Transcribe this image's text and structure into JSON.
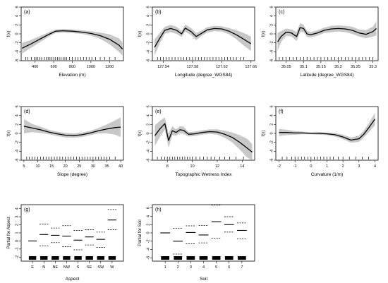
{
  "chart_data": [
    {
      "type": "line",
      "panel_label": "(a)",
      "xlabel": "Elevation (m)",
      "ylabel": "f(x)",
      "xlim": [
        250,
        1350
      ],
      "ylim": [
        -6,
        6
      ],
      "xticks": [
        400,
        600,
        800,
        1000,
        1200
      ],
      "yticks": [
        -6,
        -4,
        -2,
        0,
        2,
        4,
        6
      ],
      "series": [
        {
          "x": [
            260,
            350,
            450,
            550,
            620,
            700,
            800,
            900,
            1000,
            1100,
            1200,
            1300,
            1340
          ],
          "values": [
            -3.2,
            -2.3,
            -1.2,
            -0.1,
            0.6,
            0.7,
            0.6,
            0.4,
            0.1,
            -0.4,
            -1.2,
            -2.5,
            -3.4
          ],
          "lower": [
            -4.4,
            -3.2,
            -1.9,
            -0.6,
            0.2,
            0.3,
            0.2,
            0.0,
            -0.4,
            -1.1,
            -2.3,
            -4.0,
            -4.9
          ],
          "upper": [
            -2.0,
            -1.4,
            -0.5,
            0.4,
            1.0,
            1.1,
            1.0,
            0.8,
            0.6,
            0.3,
            -0.1,
            -1.0,
            -1.9
          ]
        }
      ],
      "rug": [
        300,
        320,
        360,
        390,
        410,
        430,
        450,
        470,
        500,
        520,
        540,
        560,
        580,
        600,
        620,
        640,
        660,
        680,
        700,
        720,
        740,
        770,
        800,
        830,
        860,
        890,
        920,
        950,
        980,
        1010,
        1050,
        1100,
        1150,
        1200,
        1260
      ]
    },
    {
      "type": "line",
      "panel_label": "(b)",
      "xlabel": "Longitude (degree_WGS84)",
      "ylabel": "f(x)",
      "xlim": [
        127.525,
        127.665
      ],
      "ylim": [
        -6,
        6
      ],
      "xticks": [
        127.54,
        127.58,
        127.62,
        127.66
      ],
      "yticks": [
        -6,
        -4,
        -2,
        0,
        2,
        4,
        6
      ],
      "series": [
        {
          "x": [
            127.528,
            127.535,
            127.542,
            127.55,
            127.558,
            127.565,
            127.57,
            127.578,
            127.585,
            127.592,
            127.6,
            127.61,
            127.62,
            127.63,
            127.64,
            127.65,
            127.66
          ],
          "values": [
            -3.0,
            -1.0,
            0.8,
            1.2,
            0.8,
            0.0,
            1.3,
            0.5,
            -0.6,
            0.1,
            0.9,
            1.2,
            1.1,
            0.6,
            -0.2,
            -1.2,
            -2.2
          ],
          "lower": [
            -4.8,
            -2.2,
            0.0,
            0.4,
            0.0,
            -0.7,
            0.5,
            -0.3,
            -1.4,
            -0.5,
            0.3,
            0.6,
            0.5,
            -0.1,
            -1.2,
            -2.6,
            -3.8
          ],
          "upper": [
            -1.2,
            0.2,
            1.6,
            2.0,
            1.6,
            0.7,
            2.1,
            1.3,
            0.2,
            0.7,
            1.5,
            1.8,
            1.7,
            1.3,
            0.8,
            0.2,
            -0.6
          ]
        }
      ],
      "rug": [
        127.532,
        127.536,
        127.54,
        127.544,
        127.548,
        127.552,
        127.556,
        127.56,
        127.564,
        127.568,
        127.572,
        127.576,
        127.58,
        127.584,
        127.588,
        127.592,
        127.596,
        127.6,
        127.604,
        127.608,
        127.612,
        127.616,
        127.62,
        127.624,
        127.628,
        127.632,
        127.636,
        127.64,
        127.645,
        127.65
      ]
    },
    {
      "type": "line",
      "panel_label": "(c)",
      "xlabel": "Latitude (degree_WGS84)",
      "ylabel": "f(x)",
      "xlim": [
        35.02,
        35.315
      ],
      "ylim": [
        -6,
        6
      ],
      "xticks": [
        35.05,
        35.1,
        35.15,
        35.2,
        35.25,
        35.3
      ],
      "yticks": [
        -6,
        -4,
        -2,
        0,
        2,
        4,
        6
      ],
      "series": [
        {
          "x": [
            35.025,
            35.035,
            35.05,
            35.065,
            35.08,
            35.09,
            35.1,
            35.11,
            35.12,
            35.14,
            35.16,
            35.18,
            35.2,
            35.22,
            35.24,
            35.26,
            35.28,
            35.3,
            35.31
          ],
          "values": [
            -1.8,
            -0.6,
            0.4,
            0.2,
            -0.6,
            1.4,
            1.2,
            0.0,
            -0.2,
            0.2,
            0.8,
            1.1,
            1.2,
            1.1,
            0.8,
            0.2,
            -0.1,
            0.5,
            1.2
          ],
          "lower": [
            -3.8,
            -1.8,
            -0.4,
            -0.6,
            -1.6,
            0.4,
            0.4,
            -0.7,
            -0.8,
            -0.4,
            0.2,
            0.4,
            0.5,
            0.4,
            0.0,
            -0.6,
            -1.0,
            -0.6,
            -0.4
          ],
          "upper": [
            0.2,
            0.6,
            1.2,
            1.0,
            0.4,
            2.4,
            2.0,
            0.7,
            0.4,
            0.8,
            1.4,
            1.8,
            1.9,
            1.8,
            1.6,
            1.0,
            0.8,
            1.6,
            2.8
          ]
        }
      ],
      "rug": [
        35.03,
        35.04,
        35.05,
        35.06,
        35.07,
        35.08,
        35.09,
        35.1,
        35.11,
        35.12,
        35.13,
        35.14,
        35.15,
        35.16,
        35.17,
        35.18,
        35.19,
        35.2,
        35.21,
        35.22,
        35.23,
        35.24,
        35.25,
        35.26,
        35.27,
        35.28,
        35.29,
        35.3
      ]
    },
    {
      "type": "line",
      "panel_label": "(d)",
      "xlabel": "Slope (degree)",
      "ylabel": "f(x)",
      "xlim": [
        4,
        41
      ],
      "ylim": [
        -6,
        6
      ],
      "xticks": [
        5,
        10,
        15,
        20,
        25,
        30,
        35,
        40
      ],
      "yticks": [
        -6,
        -4,
        -2,
        0,
        2,
        4,
        6
      ],
      "series": [
        {
          "x": [
            5,
            8,
            11,
            14,
            17,
            20,
            23,
            26,
            29,
            32,
            35,
            38,
            40
          ],
          "values": [
            1.6,
            1.2,
            0.8,
            0.3,
            -0.1,
            -0.4,
            -0.5,
            -0.3,
            0.1,
            0.6,
            1.0,
            1.3,
            1.4
          ],
          "lower": [
            0.0,
            0.3,
            0.1,
            -0.2,
            -0.6,
            -0.9,
            -1.0,
            -0.8,
            -0.4,
            0.0,
            0.0,
            -0.3,
            -0.8
          ],
          "upper": [
            3.2,
            2.1,
            1.5,
            0.8,
            0.4,
            0.1,
            0.0,
            0.2,
            0.6,
            1.2,
            2.0,
            2.9,
            3.6
          ]
        }
      ],
      "rug": [
        6,
        7,
        8,
        9,
        10,
        11,
        12,
        13,
        14,
        15,
        16,
        17,
        18,
        19,
        20,
        21,
        22,
        23,
        24,
        25,
        26,
        27,
        28,
        29,
        30,
        31,
        32,
        33,
        34,
        35,
        36,
        38
      ]
    },
    {
      "type": "line",
      "panel_label": "(e)",
      "xlabel": "Topographic Wetness Index",
      "ylabel": "f(x)",
      "xlim": [
        6.8,
        15.0
      ],
      "ylim": [
        -6,
        6
      ],
      "xticks": [
        8,
        10,
        12,
        14
      ],
      "yticks": [
        -6,
        -4,
        -2,
        0,
        2,
        4,
        6
      ],
      "series": [
        {
          "x": [
            7.0,
            7.4,
            7.8,
            8.1,
            8.4,
            8.7,
            9.0,
            9.3,
            9.7,
            10.2,
            10.8,
            11.4,
            12.0,
            12.6,
            13.2,
            13.8,
            14.4,
            14.8
          ],
          "values": [
            -0.5,
            1.0,
            2.2,
            -1.6,
            0.6,
            0.2,
            0.8,
            0.7,
            -0.2,
            -0.1,
            0.2,
            0.4,
            0.3,
            -0.2,
            -0.9,
            -2.0,
            -3.3,
            -4.2
          ],
          "lower": [
            -2.8,
            -0.8,
            0.8,
            -3.2,
            -0.4,
            -0.5,
            0.0,
            -0.1,
            -0.7,
            -0.6,
            -0.3,
            -0.1,
            -0.3,
            -1.0,
            -2.0,
            -3.6,
            -5.4,
            -6.0
          ],
          "upper": [
            1.8,
            2.8,
            3.6,
            0.0,
            1.6,
            0.9,
            1.6,
            1.5,
            0.3,
            0.4,
            0.7,
            0.9,
            0.9,
            0.6,
            0.2,
            -0.4,
            -1.2,
            -2.4
          ]
        }
      ],
      "rug": [
        7.2,
        7.5,
        7.8,
        8.0,
        8.2,
        8.4,
        8.6,
        8.8,
        9.0,
        9.2,
        9.4,
        9.6,
        9.8,
        10.0,
        10.3,
        10.6,
        10.9,
        11.2,
        11.5,
        11.8,
        12.2,
        12.6,
        13.0,
        13.5,
        14.1
      ]
    },
    {
      "type": "line",
      "panel_label": "(f)",
      "xlabel": "Curvature (1/m)",
      "ylabel": "f(x)",
      "xlim": [
        -2.2,
        4.2
      ],
      "ylim": [
        -6,
        6
      ],
      "xticks": [
        -2,
        -1,
        0,
        1,
        2,
        3,
        4
      ],
      "yticks": [
        -6,
        -4,
        -2,
        0,
        2,
        4,
        6
      ],
      "series": [
        {
          "x": [
            -2.0,
            -1.5,
            -1.0,
            -0.5,
            0.0,
            0.5,
            1.0,
            1.5,
            2.0,
            2.5,
            3.0,
            3.3,
            3.6,
            4.0
          ],
          "values": [
            0.2,
            0.2,
            0.1,
            0.1,
            0.0,
            0.0,
            -0.1,
            -0.3,
            -0.8,
            -1.5,
            -1.2,
            -0.2,
            1.2,
            3.2
          ],
          "lower": [
            -0.6,
            -0.4,
            -0.3,
            -0.2,
            -0.2,
            -0.3,
            -0.4,
            -0.7,
            -1.3,
            -2.1,
            -1.9,
            -1.0,
            0.2,
            1.8
          ],
          "upper": [
            1.0,
            0.8,
            0.5,
            0.4,
            0.2,
            0.3,
            0.2,
            0.1,
            -0.3,
            -0.9,
            -0.5,
            0.6,
            2.2,
            4.6
          ]
        }
      ],
      "rug": [
        -1.8,
        -1.5,
        -1.2,
        -1.0,
        -0.8,
        -0.6,
        -0.4,
        -0.2,
        0.0,
        0.2,
        0.4,
        0.6,
        0.8,
        1.0,
        1.2,
        1.4,
        1.7,
        2.0,
        2.4,
        2.8,
        3.2,
        3.6
      ]
    },
    {
      "type": "bar",
      "panel_label": "(g)",
      "xlabel": "Aspect",
      "ylabel": "Partial for Aspect",
      "ylim": [
        -2.5,
        4.5
      ],
      "yticks": [
        -2,
        -1,
        0,
        1,
        2,
        3,
        4
      ],
      "categories": [
        "E",
        "N",
        "NE",
        "NW",
        "S",
        "SE",
        "SW",
        "W"
      ],
      "values": [
        0.0,
        0.8,
        0.7,
        0.6,
        0.1,
        0.5,
        0.2,
        2.6
      ],
      "upper": [
        0.0,
        2.1,
        1.6,
        1.9,
        1.3,
        1.4,
        1.1,
        3.9
      ],
      "lower": [
        0.0,
        -0.6,
        -0.2,
        -0.7,
        -1.1,
        -0.5,
        -0.8,
        1.4
      ]
    },
    {
      "type": "bar",
      "panel_label": "(h)",
      "xlabel": "Soil",
      "ylabel": "Partial for Soil",
      "ylim": [
        -6.8,
        6.8
      ],
      "yticks": [
        -6,
        -4,
        -2,
        0,
        2,
        4,
        6
      ],
      "categories": [
        "1",
        "2",
        "3",
        "4",
        "5",
        "6",
        "7"
      ],
      "values": [
        0.0,
        -2.0,
        0.1,
        -0.5,
        2.7,
        2.0,
        0.6
      ],
      "upper": [
        0.0,
        1.1,
        1.7,
        1.8,
        6.7,
        3.9,
        2.4
      ],
      "lower": [
        0.0,
        -5.1,
        -2.6,
        -2.4,
        -1.3,
        0.2,
        -1.4
      ]
    }
  ]
}
